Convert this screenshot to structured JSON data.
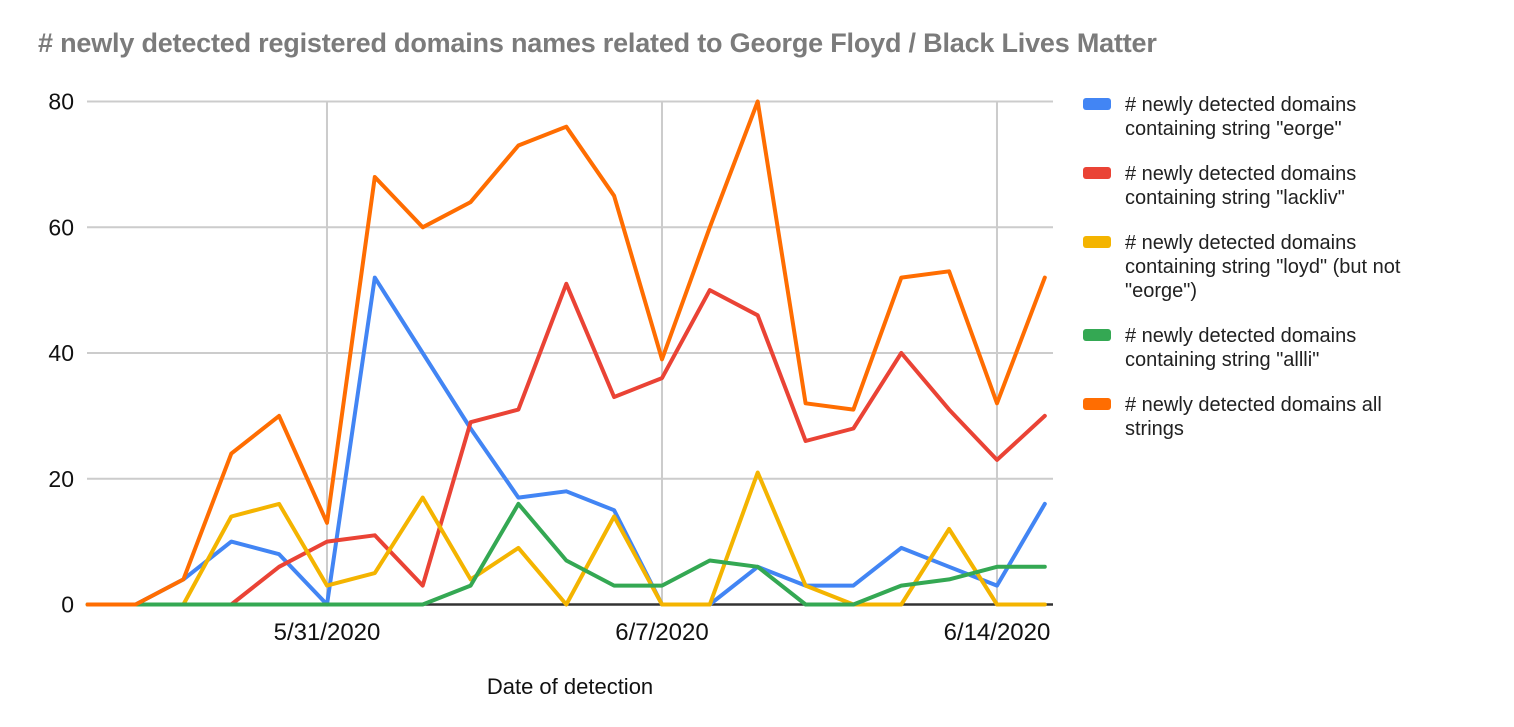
{
  "title": "# newly detected registered domains names related to George Floyd / Black Lives Matter",
  "chart_data": {
    "type": "line",
    "title": "# newly detected registered domains names related to George Floyd / Black Lives Matter",
    "xlabel": "Date of detection",
    "ylabel": "",
    "ylim": [
      0,
      80
    ],
    "y_ticks": [
      0,
      20,
      40,
      60,
      80
    ],
    "grid": true,
    "legend_position": "right",
    "x": [
      "5/26/2020",
      "5/27/2020",
      "5/28/2020",
      "5/29/2020",
      "5/30/2020",
      "5/31/2020",
      "6/1/2020",
      "6/2/2020",
      "6/3/2020",
      "6/4/2020",
      "6/5/2020",
      "6/6/2020",
      "6/7/2020",
      "6/8/2020",
      "6/9/2020",
      "6/10/2020",
      "6/11/2020",
      "6/12/2020",
      "6/13/2020",
      "6/14/2020",
      "6/15/2020"
    ],
    "x_tick_indices": [
      5,
      12,
      19
    ],
    "x_tick_labels": [
      "5/31/2020",
      "6/7/2020",
      "6/14/2020"
    ],
    "series": [
      {
        "name": "# newly detected domains containing string \"eorge\"",
        "color": "#4285f4",
        "values": [
          0,
          0,
          4,
          10,
          8,
          0,
          52,
          40,
          28,
          17,
          18,
          15,
          0,
          0,
          6,
          3,
          3,
          9,
          6,
          3,
          16
        ]
      },
      {
        "name": "# newly detected domains containing string \"lackliv\"",
        "color": "#ea4335",
        "values": [
          0,
          0,
          0,
          0,
          6,
          10,
          11,
          3,
          29,
          31,
          51,
          33,
          36,
          50,
          46,
          26,
          28,
          40,
          31,
          23,
          30
        ]
      },
      {
        "name": "# newly detected domains containing string \"loyd\" (but not \"eorge\")",
        "color": "#f4b400",
        "values": [
          0,
          0,
          0,
          14,
          16,
          3,
          5,
          17,
          4,
          9,
          0,
          14,
          0,
          0,
          21,
          3,
          0,
          0,
          12,
          0,
          0
        ]
      },
      {
        "name": "# newly detected domains containing string \"allli\"",
        "color": "#34a853",
        "values": [
          0,
          0,
          0,
          0,
          0,
          0,
          0,
          0,
          3,
          16,
          7,
          3,
          3,
          7,
          6,
          0,
          0,
          3,
          4,
          6,
          6
        ]
      },
      {
        "name": "# newly detected domains all strings",
        "color": "#ff6d01",
        "values": [
          0,
          0,
          4,
          24,
          30,
          13,
          68,
          60,
          64,
          73,
          76,
          65,
          39,
          60,
          80,
          32,
          31,
          52,
          53,
          32,
          52
        ]
      }
    ]
  }
}
